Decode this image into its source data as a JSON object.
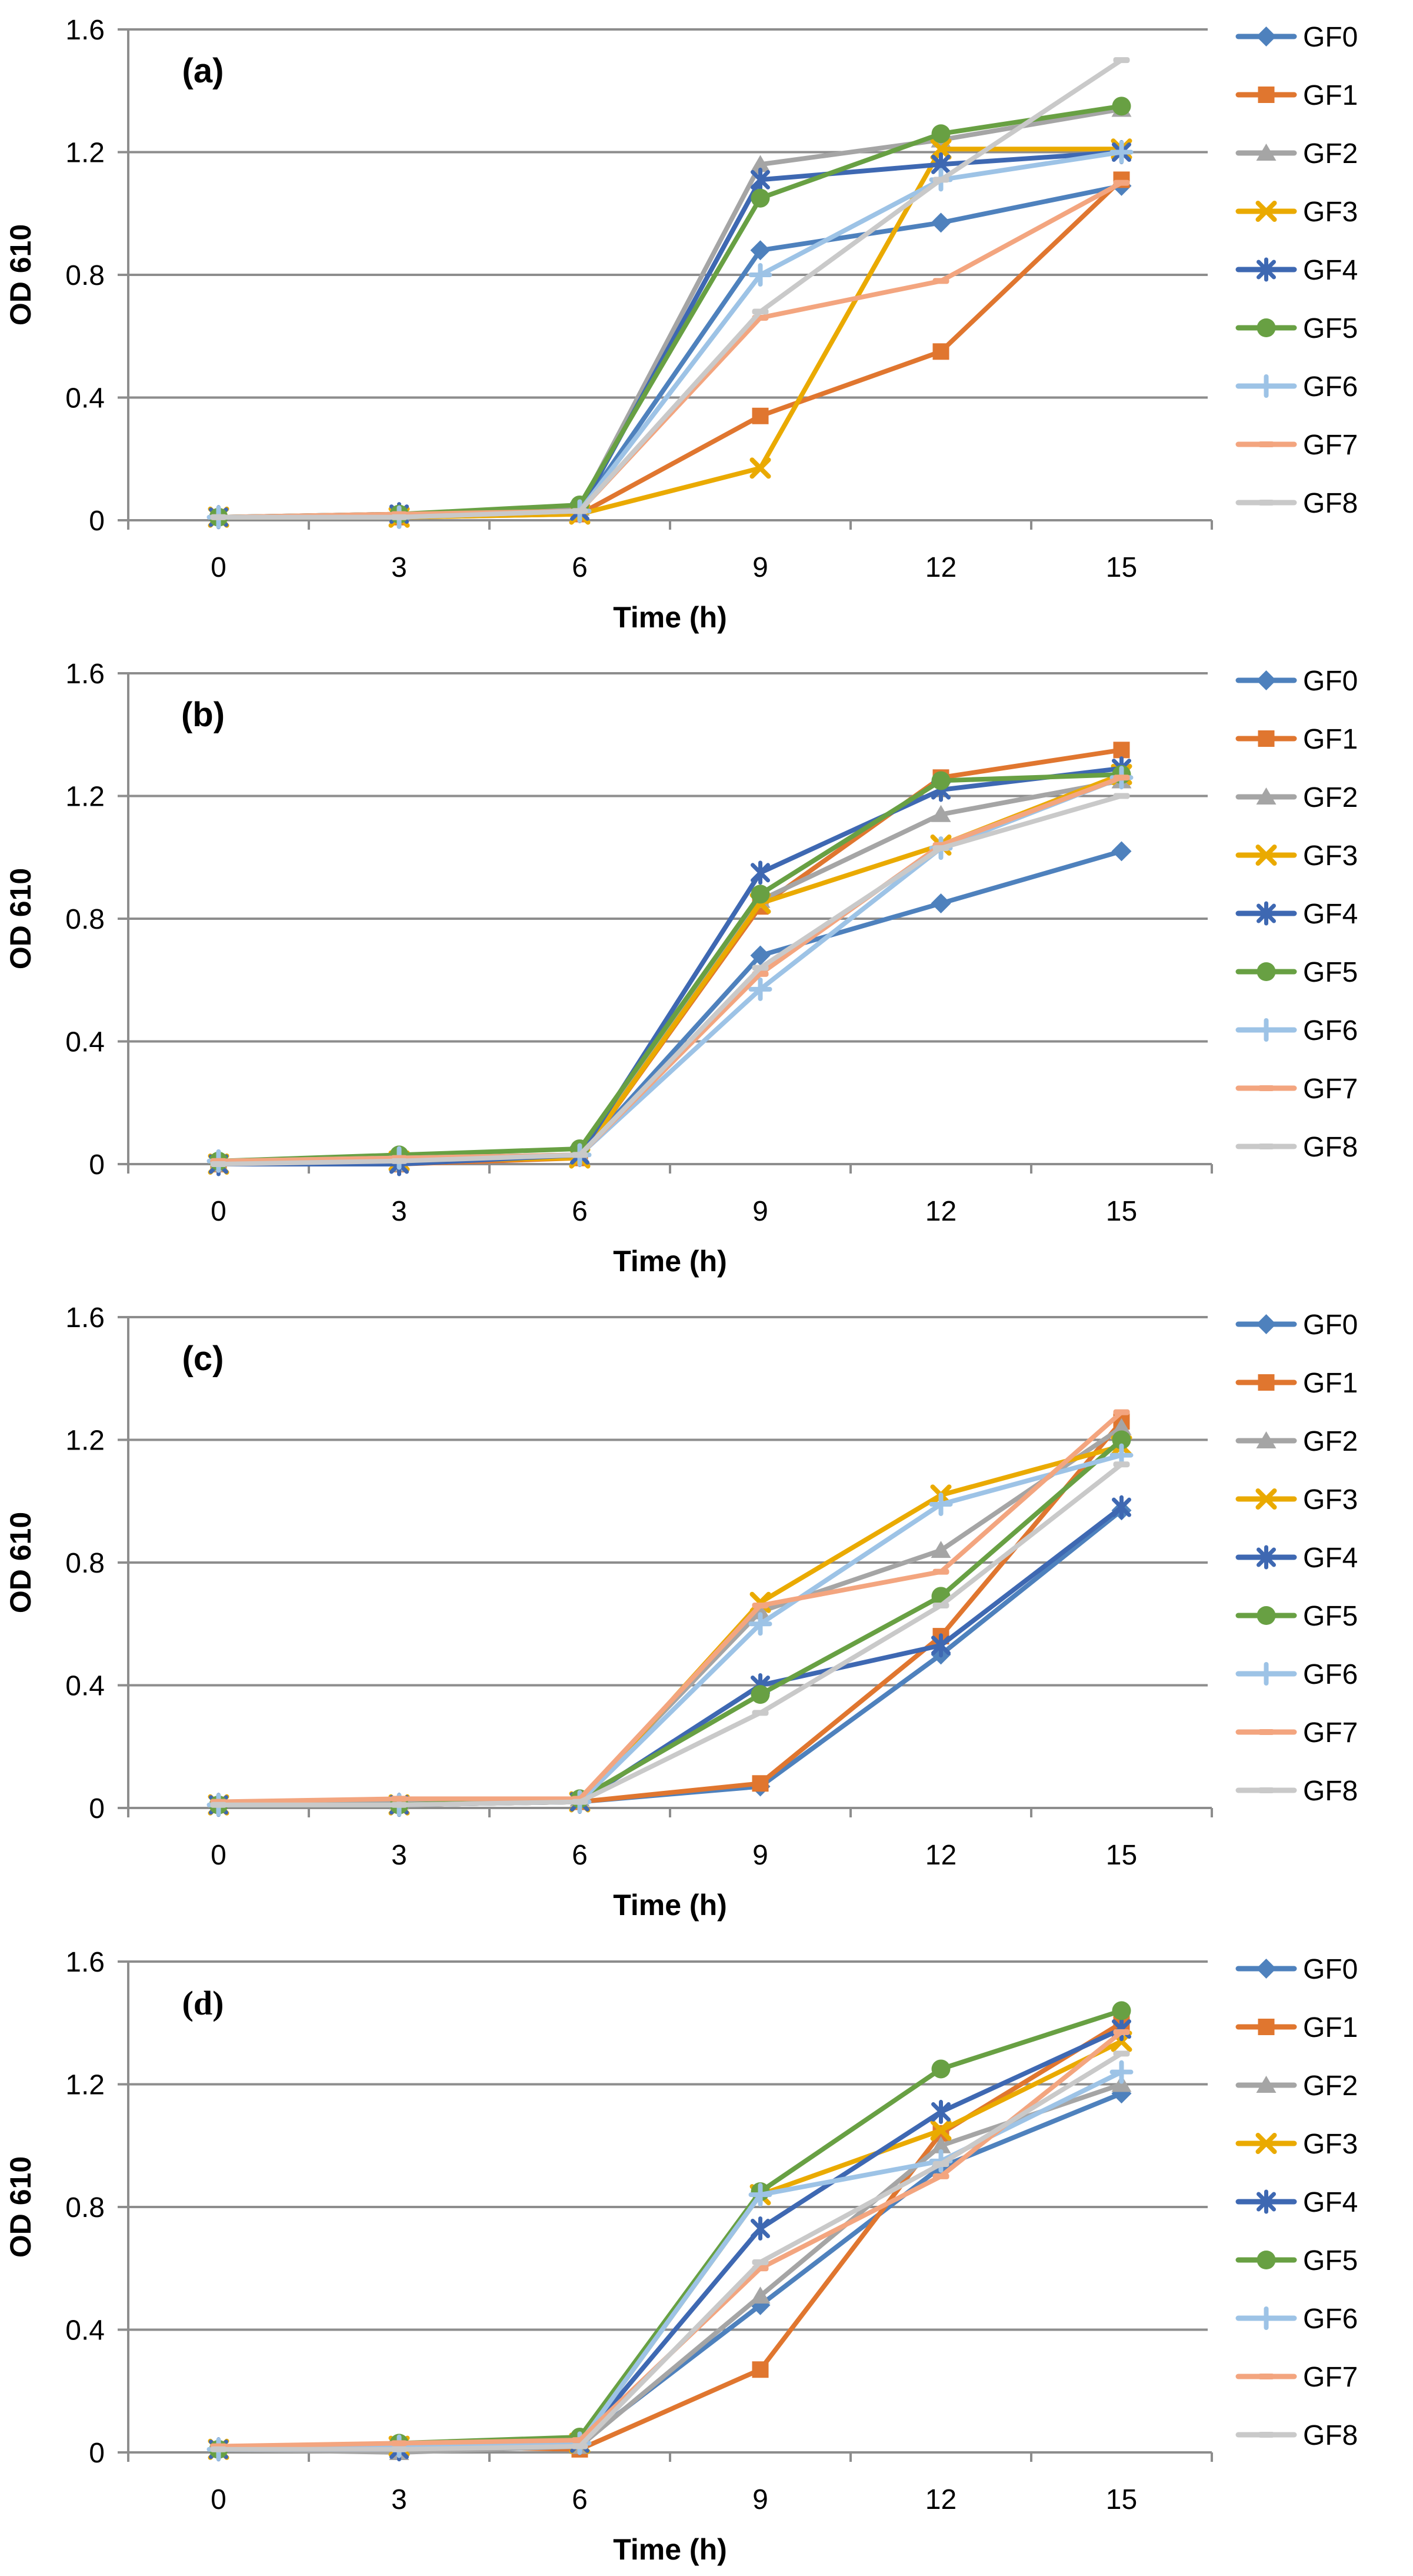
{
  "figure": {
    "background": "#ffffff",
    "grid_color": "#8d8d8d",
    "axis_color": "#8d8d8d"
  },
  "series_styles": [
    {
      "name": "GF0",
      "color": "#4e81bd",
      "marker": "diamond"
    },
    {
      "name": "GF1",
      "color": "#e0762f",
      "marker": "square"
    },
    {
      "name": "GF2",
      "color": "#a5a5a5",
      "marker": "triangle"
    },
    {
      "name": "GF3",
      "color": "#eaaa00",
      "marker": "x"
    },
    {
      "name": "GF4",
      "color": "#3e68b2",
      "marker": "asterisk"
    },
    {
      "name": "GF5",
      "color": "#68a043",
      "marker": "circle"
    },
    {
      "name": "GF6",
      "color": "#9dc3e6",
      "marker": "plus"
    },
    {
      "name": "GF7",
      "color": "#f3a57f",
      "marker": "dash"
    },
    {
      "name": "GF8",
      "color": "#c9c9c9",
      "marker": "dash"
    }
  ],
  "chart_data": [
    {
      "type": "line",
      "panel_label": "(a)",
      "panel_label_style": "sans",
      "xlabel": "Time (h)",
      "ylabel": "OD 610",
      "ylim": [
        0,
        1.6
      ],
      "yticks": [
        0,
        0.4,
        0.8,
        1.2,
        1.6
      ],
      "ytick_labels": [
        "0",
        "0.4",
        "0.8",
        "1.2",
        "1.6"
      ],
      "x": [
        0,
        3,
        6,
        9,
        12,
        15
      ],
      "grid": true,
      "legend_position": "right",
      "series": [
        {
          "name": "GF0",
          "values": [
            0.01,
            0.01,
            0.03,
            0.88,
            0.97,
            1.09
          ]
        },
        {
          "name": "GF1",
          "values": [
            0.01,
            0.01,
            0.02,
            0.34,
            0.55,
            1.11
          ]
        },
        {
          "name": "GF2",
          "values": [
            0.01,
            0.02,
            0.04,
            1.16,
            1.24,
            1.34
          ]
        },
        {
          "name": "GF3",
          "values": [
            0.01,
            0.01,
            0.02,
            0.17,
            1.21,
            1.21
          ]
        },
        {
          "name": "GF4",
          "values": [
            0.01,
            0.02,
            0.03,
            1.11,
            1.16,
            1.2
          ]
        },
        {
          "name": "GF5",
          "values": [
            0.01,
            0.02,
            0.05,
            1.05,
            1.26,
            1.35
          ]
        },
        {
          "name": "GF6",
          "values": [
            0.01,
            0.01,
            0.03,
            0.8,
            1.11,
            1.2
          ]
        },
        {
          "name": "GF7",
          "values": [
            0.01,
            0.02,
            0.03,
            0.66,
            0.78,
            1.1
          ]
        },
        {
          "name": "GF8",
          "values": [
            0.01,
            0.01,
            0.03,
            0.68,
            1.11,
            1.5
          ]
        }
      ]
    },
    {
      "type": "line",
      "panel_label": "(b)",
      "panel_label_style": "sans",
      "xlabel": "Time (h)",
      "ylabel": "OD 610",
      "ylim": [
        0,
        1.6
      ],
      "yticks": [
        0,
        0.4,
        0.8,
        1.2,
        1.6
      ],
      "ytick_labels": [
        "0",
        "0.4",
        "0.8",
        "1.2",
        "1.6"
      ],
      "x": [
        0,
        3,
        6,
        9,
        12,
        15
      ],
      "grid": true,
      "legend_position": "right",
      "series": [
        {
          "name": "GF0",
          "values": [
            0.01,
            0.02,
            0.03,
            0.68,
            0.85,
            1.02
          ]
        },
        {
          "name": "GF1",
          "values": [
            0.0,
            0.0,
            0.02,
            0.84,
            1.26,
            1.35
          ]
        },
        {
          "name": "GF2",
          "values": [
            0.0,
            0.0,
            0.03,
            0.86,
            1.14,
            1.25
          ]
        },
        {
          "name": "GF3",
          "values": [
            0.0,
            0.01,
            0.02,
            0.85,
            1.04,
            1.27
          ]
        },
        {
          "name": "GF4",
          "values": [
            0.0,
            0.0,
            0.03,
            0.95,
            1.22,
            1.29
          ]
        },
        {
          "name": "GF5",
          "values": [
            0.01,
            0.03,
            0.05,
            0.88,
            1.25,
            1.27
          ]
        },
        {
          "name": "GF6",
          "values": [
            0.01,
            0.02,
            0.03,
            0.57,
            1.03,
            1.26
          ]
        },
        {
          "name": "GF7",
          "values": [
            0.01,
            0.02,
            0.03,
            0.62,
            1.04,
            1.26
          ]
        },
        {
          "name": "GF8",
          "values": [
            0.0,
            0.01,
            0.03,
            0.64,
            1.03,
            1.2
          ]
        }
      ]
    },
    {
      "type": "line",
      "panel_label": "(c)",
      "panel_label_style": "sans",
      "xlabel": "Time (h)",
      "ylabel": "OD 610",
      "ylim": [
        0,
        1.6
      ],
      "yticks": [
        0,
        0.4,
        0.8,
        1.2,
        1.6
      ],
      "ytick_labels": [
        "0",
        "0.4",
        "0.8",
        "1.2",
        "1.6"
      ],
      "x": [
        0,
        3,
        6,
        9,
        12,
        15
      ],
      "grid": true,
      "legend_position": "right",
      "series": [
        {
          "name": "GF0",
          "values": [
            0.01,
            0.01,
            0.02,
            0.07,
            0.5,
            0.97
          ]
        },
        {
          "name": "GF1",
          "values": [
            0.01,
            0.01,
            0.02,
            0.08,
            0.56,
            1.26
          ]
        },
        {
          "name": "GF2",
          "values": [
            0.01,
            0.02,
            0.03,
            0.64,
            0.84,
            1.24
          ]
        },
        {
          "name": "GF3",
          "values": [
            0.01,
            0.01,
            0.02,
            0.67,
            1.02,
            1.18
          ]
        },
        {
          "name": "GF4",
          "values": [
            0.01,
            0.01,
            0.02,
            0.4,
            0.53,
            0.98
          ]
        },
        {
          "name": "GF5",
          "values": [
            0.01,
            0.01,
            0.03,
            0.37,
            0.69,
            1.2
          ]
        },
        {
          "name": "GF6",
          "values": [
            0.01,
            0.01,
            0.02,
            0.6,
            0.99,
            1.15
          ]
        },
        {
          "name": "GF7",
          "values": [
            0.02,
            0.03,
            0.03,
            0.66,
            0.77,
            1.29
          ]
        },
        {
          "name": "GF8",
          "values": [
            0.01,
            0.01,
            0.02,
            0.31,
            0.66,
            1.12
          ]
        }
      ]
    },
    {
      "type": "line",
      "panel_label": "(d)",
      "panel_label_style": "serif",
      "xlabel": "Time (h)",
      "ylabel": "OD 610",
      "ylim": [
        0,
        1.6
      ],
      "yticks": [
        0,
        0.4,
        0.8,
        1.2,
        1.6
      ],
      "ytick_labels": [
        "0",
        "0.4",
        "0.8",
        "1.2",
        "1.6"
      ],
      "x": [
        0,
        3,
        6,
        9,
        12,
        15
      ],
      "grid": true,
      "legend_position": "right",
      "series": [
        {
          "name": "GF0",
          "values": [
            0.01,
            0.01,
            0.03,
            0.48,
            0.93,
            1.17
          ]
        },
        {
          "name": "GF1",
          "values": [
            0.01,
            0.02,
            0.01,
            0.27,
            1.04,
            1.4
          ]
        },
        {
          "name": "GF2",
          "values": [
            0.01,
            0.0,
            0.02,
            0.51,
            1.0,
            1.2
          ]
        },
        {
          "name": "GF3",
          "values": [
            0.01,
            0.02,
            0.03,
            0.84,
            1.05,
            1.34
          ]
        },
        {
          "name": "GF4",
          "values": [
            0.01,
            0.01,
            0.03,
            0.73,
            1.11,
            1.38
          ]
        },
        {
          "name": "GF5",
          "values": [
            0.01,
            0.03,
            0.05,
            0.85,
            1.25,
            1.44
          ]
        },
        {
          "name": "GF6",
          "values": [
            0.01,
            0.02,
            0.03,
            0.84,
            0.95,
            1.24
          ]
        },
        {
          "name": "GF7",
          "values": [
            0.02,
            0.03,
            0.04,
            0.6,
            0.9,
            1.37
          ]
        },
        {
          "name": "GF8",
          "values": [
            0.01,
            0.01,
            0.02,
            0.62,
            0.94,
            1.3
          ]
        }
      ]
    }
  ]
}
